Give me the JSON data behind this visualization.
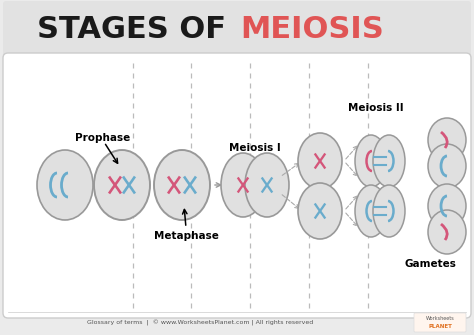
{
  "title_stages": "STAGES OF ",
  "title_meiosis": "MEIOSIS",
  "title_color_stages": "#1a1a1a",
  "title_color_meiosis": "#e05555",
  "bg_color": "#ebebeb",
  "panel_color": "#ffffff",
  "footer_text": "Glossary of terms  |  © www.WorksheetsPlanet.com | All rights reserved",
  "labels": {
    "prophase": "Prophase",
    "metaphase": "Metaphase",
    "meiosis_i": "Meiosis I",
    "meiosis_ii": "Meiosis II",
    "gametes": "Gametes"
  },
  "pink": "#d4567a",
  "blue": "#6aaccc",
  "gray_cell": "#e0e0e0",
  "cell_edge": "#999999",
  "dashed_line_color": "#bbbbbb",
  "arrow_color": "#888888"
}
